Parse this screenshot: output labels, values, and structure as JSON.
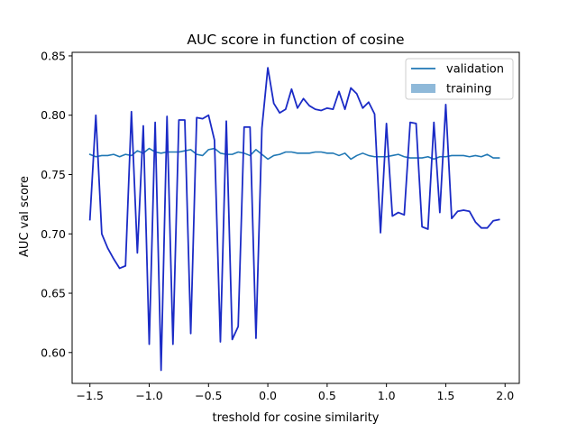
{
  "chart_data": {
    "type": "line",
    "title": "AUC score in function of cosine",
    "xlabel": "treshold for cosine similarity",
    "ylabel": "AUC val score",
    "xlim": [
      -1.65,
      2.12
    ],
    "ylim": [
      0.574,
      0.853
    ],
    "xticks": [
      -1.5,
      -1.0,
      -0.5,
      0.0,
      0.5,
      1.0,
      1.5,
      2.0
    ],
    "xtick_labels": [
      "−1.5",
      "−1.0",
      "−0.5",
      "0.0",
      "0.5",
      "1.0",
      "1.5",
      "2.0"
    ],
    "yticks": [
      0.6,
      0.65,
      0.7,
      0.75,
      0.8,
      0.85
    ],
    "ytick_labels": [
      "0.60",
      "0.65",
      "0.70",
      "0.75",
      "0.80",
      "0.85"
    ],
    "grid": false,
    "legend_position": "top-right",
    "legend": [
      {
        "label": "validation",
        "kind": "line",
        "color": "#1f77b4"
      },
      {
        "label": "training",
        "kind": "patch",
        "color": "#8fb9d9"
      }
    ],
    "series": [
      {
        "name": "validation",
        "color": "#1f77b4",
        "x": [
          -1.5,
          -1.45,
          -1.4,
          -1.35,
          -1.3,
          -1.25,
          -1.2,
          -1.15,
          -1.1,
          -1.05,
          -1.0,
          -0.95,
          -0.9,
          -0.85,
          -0.8,
          -0.75,
          -0.7,
          -0.65,
          -0.6,
          -0.55,
          -0.5,
          -0.45,
          -0.4,
          -0.35,
          -0.3,
          -0.25,
          -0.2,
          -0.15,
          -0.1,
          -0.05,
          0.0,
          0.05,
          0.1,
          0.15,
          0.2,
          0.25,
          0.3,
          0.35,
          0.4,
          0.45,
          0.5,
          0.55,
          0.6,
          0.65,
          0.7,
          0.75,
          0.8,
          0.85,
          0.9,
          0.95,
          1.0,
          1.05,
          1.1,
          1.15,
          1.2,
          1.25,
          1.3,
          1.35,
          1.4,
          1.45,
          1.5,
          1.55,
          1.6,
          1.65,
          1.7,
          1.75,
          1.8,
          1.85,
          1.9,
          1.95
        ],
        "y": [
          0.767,
          0.765,
          0.766,
          0.766,
          0.767,
          0.765,
          0.767,
          0.766,
          0.77,
          0.768,
          0.772,
          0.769,
          0.768,
          0.769,
          0.769,
          0.769,
          0.77,
          0.771,
          0.767,
          0.766,
          0.771,
          0.772,
          0.768,
          0.767,
          0.767,
          0.769,
          0.768,
          0.766,
          0.771,
          0.767,
          0.763,
          0.766,
          0.767,
          0.769,
          0.769,
          0.768,
          0.768,
          0.768,
          0.769,
          0.769,
          0.768,
          0.768,
          0.766,
          0.768,
          0.763,
          0.766,
          0.768,
          0.766,
          0.765,
          0.765,
          0.765,
          0.766,
          0.767,
          0.765,
          0.764,
          0.764,
          0.764,
          0.765,
          0.763,
          0.765,
          0.765,
          0.766,
          0.766,
          0.766,
          0.765,
          0.766,
          0.765,
          0.767,
          0.764,
          0.764
        ]
      },
      {
        "name": "",
        "color": "#1b2bc6",
        "x": [
          -1.5,
          -1.45,
          -1.4,
          -1.35,
          -1.3,
          -1.25,
          -1.2,
          -1.15,
          -1.1,
          -1.05,
          -1.0,
          -0.95,
          -0.9,
          -0.85,
          -0.8,
          -0.75,
          -0.7,
          -0.65,
          -0.6,
          -0.55,
          -0.5,
          -0.45,
          -0.4,
          -0.35,
          -0.3,
          -0.25,
          -0.2,
          -0.15,
          -0.1,
          -0.05,
          0.0,
          0.05,
          0.1,
          0.15,
          0.2,
          0.25,
          0.3,
          0.35,
          0.4,
          0.45,
          0.5,
          0.55,
          0.6,
          0.65,
          0.7,
          0.75,
          0.8,
          0.85,
          0.9,
          0.95,
          1.0,
          1.05,
          1.1,
          1.15,
          1.2,
          1.25,
          1.3,
          1.35,
          1.4,
          1.45,
          1.5,
          1.55,
          1.6,
          1.65,
          1.7,
          1.75,
          1.8,
          1.85,
          1.9,
          1.95
        ],
        "y": [
          0.712,
          0.8,
          0.7,
          0.688,
          0.679,
          0.671,
          0.673,
          0.803,
          0.684,
          0.791,
          0.607,
          0.794,
          0.585,
          0.799,
          0.607,
          0.796,
          0.796,
          0.616,
          0.798,
          0.797,
          0.8,
          0.779,
          0.609,
          0.795,
          0.611,
          0.622,
          0.79,
          0.79,
          0.612,
          0.789,
          0.84,
          0.81,
          0.802,
          0.805,
          0.822,
          0.806,
          0.814,
          0.808,
          0.805,
          0.804,
          0.806,
          0.805,
          0.82,
          0.805,
          0.823,
          0.818,
          0.806,
          0.811,
          0.801,
          0.701,
          0.793,
          0.715,
          0.718,
          0.716,
          0.794,
          0.793,
          0.706,
          0.704,
          0.794,
          0.718,
          0.809,
          0.713,
          0.719,
          0.72,
          0.719,
          0.71,
          0.705,
          0.705,
          0.711,
          0.712
        ]
      }
    ]
  }
}
